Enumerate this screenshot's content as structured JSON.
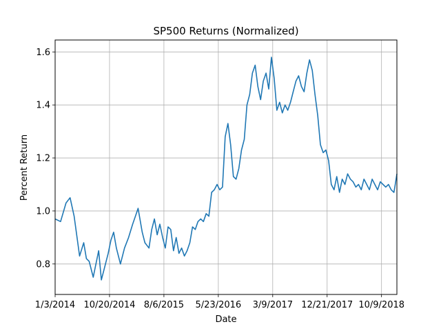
{
  "chart_data": {
    "type": "line",
    "title": "SP500 Returns (Normalized)",
    "xlabel": "Date",
    "ylabel": "Percent Return",
    "x_tick_labels": [
      "1/3/2014",
      "10/20/2014",
      "8/6/2015",
      "5/23/2016",
      "3/9/2017",
      "12/21/2017",
      "10/9/2018"
    ],
    "y_tick_labels": [
      "0.8",
      "1.0",
      "1.2",
      "1.4",
      "1.6"
    ],
    "y_ticks": [
      0.8,
      1.0,
      1.2,
      1.4,
      1.6
    ],
    "ylim": [
      0.685,
      1.645
    ],
    "xlim": [
      0,
      1256
    ],
    "grid": true,
    "line_color": "#1f77b4",
    "series": [
      {
        "x": [
          0,
          20,
          40,
          55,
          70,
          90,
          105,
          115,
          125,
          140,
          150,
          160,
          170,
          180,
          195,
          205,
          215,
          225,
          240,
          255,
          270,
          285,
          295,
          305,
          320,
          330,
          345,
          355,
          365,
          375,
          385,
          395,
          405,
          415,
          425,
          435,
          445,
          455,
          465,
          475,
          485,
          495,
          505,
          515,
          525,
          535,
          545,
          555,
          565,
          575,
          585,
          595,
          605,
          615,
          625,
          635,
          645,
          655,
          665,
          675,
          685,
          695,
          705,
          715,
          725,
          735,
          745,
          755,
          765,
          775,
          785,
          795,
          805,
          815,
          825,
          835,
          845,
          855,
          865,
          875,
          885,
          895,
          905,
          915,
          925,
          935,
          945,
          955,
          965,
          975,
          985,
          995,
          1005,
          1015,
          1025,
          1035,
          1045,
          1055,
          1065,
          1075,
          1085,
          1095,
          1105,
          1115,
          1125,
          1135,
          1145,
          1155,
          1165,
          1175,
          1185,
          1195,
          1205,
          1215,
          1225,
          1235,
          1245,
          1250,
          1256
        ],
        "values": [
          0.97,
          0.96,
          1.03,
          1.05,
          0.98,
          0.83,
          0.88,
          0.82,
          0.81,
          0.75,
          0.8,
          0.85,
          0.74,
          0.78,
          0.84,
          0.89,
          0.92,
          0.86,
          0.8,
          0.86,
          0.9,
          0.95,
          0.98,
          1.01,
          0.92,
          0.88,
          0.86,
          0.93,
          0.97,
          0.91,
          0.95,
          0.9,
          0.86,
          0.94,
          0.93,
          0.85,
          0.9,
          0.84,
          0.86,
          0.83,
          0.85,
          0.88,
          0.94,
          0.93,
          0.96,
          0.97,
          0.96,
          0.99,
          0.98,
          1.07,
          1.08,
          1.1,
          1.08,
          1.09,
          1.28,
          1.33,
          1.25,
          1.13,
          1.12,
          1.16,
          1.23,
          1.27,
          1.4,
          1.44,
          1.52,
          1.55,
          1.47,
          1.42,
          1.49,
          1.52,
          1.46,
          1.58,
          1.5,
          1.38,
          1.41,
          1.37,
          1.4,
          1.38,
          1.41,
          1.45,
          1.49,
          1.51,
          1.47,
          1.45,
          1.52,
          1.57,
          1.53,
          1.44,
          1.36,
          1.25,
          1.22,
          1.23,
          1.19,
          1.1,
          1.08,
          1.13,
          1.07,
          1.12,
          1.1,
          1.14,
          1.12,
          1.11,
          1.09,
          1.1,
          1.08,
          1.12,
          1.1,
          1.08,
          1.12,
          1.1,
          1.08,
          1.11,
          1.1,
          1.09,
          1.1,
          1.08,
          1.07,
          1.1,
          1.14
        ]
      }
    ]
  }
}
